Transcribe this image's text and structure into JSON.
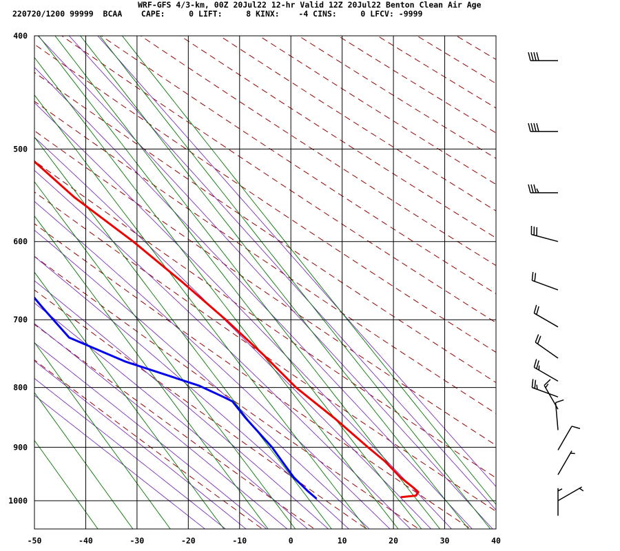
{
  "header": {
    "title": "WRF-GFS 4/3-km, 00Z 20Jul22 12-hr Valid 12Z 20Jul22 Benton Clean Air Age",
    "info": "220720/1200 99999  BCAA    CAPE:     0 LIFT:     8 KINX:    -4 CINS:     0 LFCV: -9999"
  },
  "colors": {
    "temperature": "#ee0000",
    "dewpoint": "#0000ee",
    "isotherm": "#000000",
    "dry_adiabat": "#990000",
    "moist_adiabat": "#7b2fbe",
    "mixing_ratio": "#007700",
    "wind_barb": "#000000"
  },
  "chart_data": {
    "type": "line",
    "x_ticks": [
      -50,
      -40,
      -30,
      -20,
      -10,
      0,
      10,
      20,
      30,
      40
    ],
    "p_ticks": [
      400,
      500,
      600,
      700,
      800,
      900,
      1000
    ],
    "xlim": [
      -50,
      40
    ],
    "plim": [
      1040,
      400
    ],
    "grid": true,
    "series": [
      {
        "key": "temperature",
        "points": [
          {
            "p": 993,
            "t": 22.0
          },
          {
            "p": 990,
            "t": 25.0
          },
          {
            "p": 983,
            "t": 25.9
          },
          {
            "p": 975,
            "t": 25.5
          },
          {
            "p": 955,
            "t": 24.2
          },
          {
            "p": 925,
            "t": 23.1
          },
          {
            "p": 900,
            "t": 21.5
          },
          {
            "p": 850,
            "t": 18.5
          },
          {
            "p": 800,
            "t": 14.7
          },
          {
            "p": 750,
            "t": 12.3
          },
          {
            "p": 700,
            "t": 9.2
          },
          {
            "p": 650,
            "t": 5.3
          },
          {
            "p": 600,
            "t": 0.6
          },
          {
            "p": 550,
            "t": -5.5
          },
          {
            "p": 500,
            "t": -10.2
          },
          {
            "p": 450,
            "t": -15.8
          },
          {
            "p": 418,
            "t": -19.5
          }
        ]
      },
      {
        "key": "dewpoint",
        "points": [
          {
            "p": 995,
            "t": 5.2
          },
          {
            "p": 980,
            "t": 4.4
          },
          {
            "p": 955,
            "t": 3.4
          },
          {
            "p": 930,
            "t": 3.1
          },
          {
            "p": 900,
            "t": 2.8
          },
          {
            "p": 850,
            "t": 1.2
          },
          {
            "p": 822,
            "t": 0.6
          },
          {
            "p": 815,
            "t": -0.6
          },
          {
            "p": 797,
            "t": -4.0
          },
          {
            "p": 760,
            "t": -15.5
          },
          {
            "p": 725,
            "t": -23.5
          },
          {
            "p": 685,
            "t": -25.0
          },
          {
            "p": 640,
            "t": -26.5
          },
          {
            "p": 610,
            "t": -29.5
          },
          {
            "p": 530,
            "t": -38.5
          },
          {
            "p": 500,
            "t": -39.7
          },
          {
            "p": 475,
            "t": -40.5
          },
          {
            "p": 450,
            "t": -40.6
          },
          {
            "p": 430,
            "t": -40.8
          },
          {
            "p": 418,
            "t": -40.9
          }
        ]
      }
    ],
    "wind_barbs": [
      {
        "p": 420,
        "dir": 270,
        "spd": 40
      },
      {
        "p": 483,
        "dir": 270,
        "spd": 40
      },
      {
        "p": 545,
        "dir": 270,
        "spd": 35
      },
      {
        "p": 600,
        "dir": 285,
        "spd": 30
      },
      {
        "p": 660,
        "dir": 290,
        "spd": 20
      },
      {
        "p": 710,
        "dir": 300,
        "spd": 20
      },
      {
        "p": 755,
        "dir": 305,
        "spd": 20
      },
      {
        "p": 790,
        "dir": 300,
        "spd": 25
      },
      {
        "p": 815,
        "dir": 290,
        "spd": 25
      },
      {
        "p": 835,
        "dir": 330,
        "spd": 15
      },
      {
        "p": 870,
        "dir": 355,
        "spd": 10
      },
      {
        "p": 905,
        "dir": 30,
        "spd": 10
      },
      {
        "p": 950,
        "dir": 30,
        "spd": 5
      },
      {
        "p": 1000,
        "dir": 60,
        "spd": 5
      },
      {
        "p": 1030,
        "dir": 0,
        "spd": 5
      }
    ]
  }
}
